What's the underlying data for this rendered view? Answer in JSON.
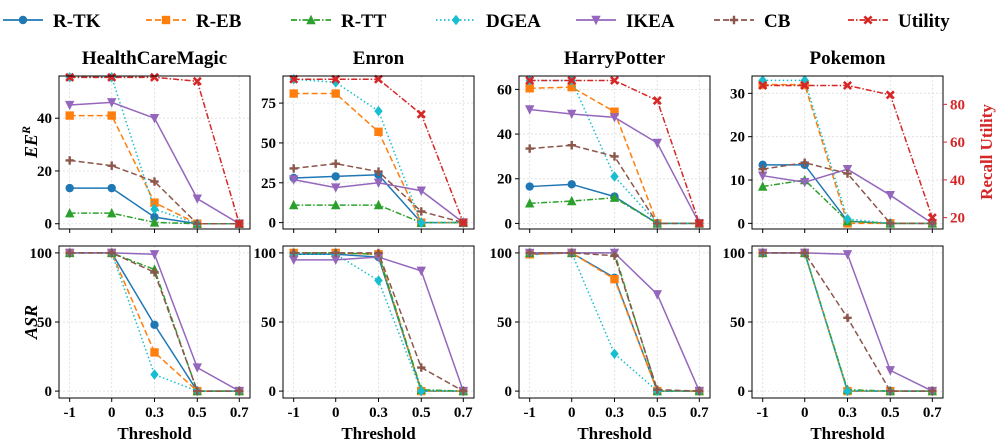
{
  "legend": [
    {
      "name": "R-TK",
      "color": "#1f77b4",
      "marker": "circle",
      "dash": "solid"
    },
    {
      "name": "R-EB",
      "color": "#ff7f0e",
      "marker": "square",
      "dash": "dashed"
    },
    {
      "name": "R-TT",
      "color": "#2ca02c",
      "marker": "triangle-up",
      "dash": "dashdot"
    },
    {
      "name": "DGEA",
      "color": "#17becf",
      "marker": "diamond",
      "dash": "dotted"
    },
    {
      "name": "IKEA",
      "color": "#9467bd",
      "marker": "triangle-down",
      "dash": "solid"
    },
    {
      "name": "CB",
      "color": "#8c564b",
      "marker": "plus",
      "dash": "dashed"
    },
    {
      "name": "Utility",
      "color": "#d62728",
      "marker": "x",
      "dash": "dashdot"
    }
  ],
  "labels": {
    "xlabel": "Threshold",
    "ylabel_top": "EE",
    "ylabel_top_sup": "R",
    "ylabel_bottom": "ASR",
    "ylabel_right": "Recall Utility"
  },
  "chart_data": [
    {
      "type": "line",
      "row": "EE^R",
      "title": "HealthCareMagic",
      "x": [
        "-1",
        "0",
        "0.3",
        "0.5",
        "0.7"
      ],
      "ylim": [
        -2,
        56
      ],
      "yticks": [
        0,
        20,
        40
      ],
      "series": [
        {
          "name": "R-TK",
          "values": [
            13.5,
            13.5,
            2.5,
            0,
            0
          ]
        },
        {
          "name": "R-EB",
          "values": [
            41,
            41,
            8,
            0,
            0
          ]
        },
        {
          "name": "R-TT",
          "values": [
            4,
            4,
            0.5,
            0,
            0
          ]
        },
        {
          "name": "DGEA",
          "values": [
            55.5,
            55.5,
            5.5,
            0,
            0
          ]
        },
        {
          "name": "IKEA",
          "values": [
            45,
            46,
            40,
            9.5,
            0
          ]
        },
        {
          "name": "CB",
          "values": [
            24,
            22,
            16,
            0,
            0
          ]
        },
        {
          "name": "Utility",
          "values": [
            55.5,
            55.5,
            55.5,
            54,
            0
          ]
        }
      ]
    },
    {
      "type": "line",
      "row": "EE^R",
      "title": "Enron",
      "x": [
        "-1",
        "0",
        "0.3",
        "0.5",
        "0.7"
      ],
      "ylim": [
        -4,
        92
      ],
      "yticks": [
        0,
        25,
        50,
        75
      ],
      "series": [
        {
          "name": "R-TK",
          "values": [
            28,
            29,
            30,
            0,
            0
          ]
        },
        {
          "name": "R-EB",
          "values": [
            81,
            81,
            57,
            0,
            0
          ]
        },
        {
          "name": "R-TT",
          "values": [
            11,
            11,
            11,
            0,
            0
          ]
        },
        {
          "name": "DGEA",
          "values": [
            90,
            88,
            70,
            0,
            0
          ]
        },
        {
          "name": "IKEA",
          "values": [
            27,
            22,
            25,
            20,
            0
          ]
        },
        {
          "name": "CB",
          "values": [
            34,
            37,
            32,
            7,
            0
          ]
        },
        {
          "name": "Utility",
          "values": [
            90,
            90,
            90,
            68,
            0
          ]
        }
      ]
    },
    {
      "type": "line",
      "row": "EE^R",
      "title": "HarryPotter",
      "x": [
        "-1",
        "0",
        "0.3",
        "0.5",
        "0.7"
      ],
      "ylim": [
        -2.5,
        66
      ],
      "yticks": [
        0,
        20,
        40,
        60
      ],
      "series": [
        {
          "name": "R-TK",
          "values": [
            16.5,
            17.5,
            12,
            0,
            0
          ]
        },
        {
          "name": "R-EB",
          "values": [
            60.5,
            61,
            50,
            0,
            0
          ]
        },
        {
          "name": "R-TT",
          "values": [
            9,
            10,
            11.5,
            0,
            0
          ]
        },
        {
          "name": "DGEA",
          "values": [
            64,
            64,
            21,
            0,
            0
          ]
        },
        {
          "name": "IKEA",
          "values": [
            51,
            49,
            47.5,
            36,
            0
          ]
        },
        {
          "name": "CB",
          "values": [
            33.5,
            35,
            30,
            0,
            0
          ]
        },
        {
          "name": "Utility",
          "values": [
            64,
            64,
            64,
            55,
            0
          ]
        }
      ]
    },
    {
      "type": "line",
      "row": "EE^R",
      "title": "Pokemon",
      "x": [
        "-1",
        "0",
        "0.3",
        "0.5",
        "0.7"
      ],
      "ylim": [
        -1.3,
        34
      ],
      "yticks": [
        0,
        10,
        20,
        30
      ],
      "y2lim": [
        14,
        95
      ],
      "y2ticks": [
        20,
        40,
        60,
        80
      ],
      "series": [
        {
          "name": "R-TK",
          "values": [
            13.5,
            13.5,
            0.5,
            0,
            0
          ]
        },
        {
          "name": "R-EB",
          "values": [
            32,
            32,
            0,
            0,
            0
          ]
        },
        {
          "name": "R-TT",
          "values": [
            8.5,
            10,
            0.5,
            0,
            0
          ]
        },
        {
          "name": "DGEA",
          "values": [
            33,
            33,
            1,
            0,
            0
          ]
        },
        {
          "name": "IKEA",
          "values": [
            11,
            9.5,
            12.5,
            6.5,
            0
          ]
        },
        {
          "name": "CB",
          "values": [
            12.5,
            14,
            11.5,
            0,
            0
          ]
        },
        {
          "name": "Utility",
          "values": [
            90,
            90,
            90,
            85,
            20
          ],
          "axis": "right"
        }
      ]
    },
    {
      "type": "line",
      "row": "ASR",
      "title": "",
      "x": [
        "-1",
        "0",
        "0.3",
        "0.5",
        "0.7"
      ],
      "ylim": [
        -5,
        105
      ],
      "yticks": [
        0,
        50,
        100
      ],
      "series": [
        {
          "name": "R-TK",
          "values": [
            100,
            100,
            48,
            0,
            0
          ]
        },
        {
          "name": "R-EB",
          "values": [
            100,
            100,
            28,
            0,
            0
          ]
        },
        {
          "name": "R-TT",
          "values": [
            100,
            100,
            88,
            0,
            0
          ]
        },
        {
          "name": "DGEA",
          "values": [
            100,
            100,
            12,
            0,
            0
          ]
        },
        {
          "name": "IKEA",
          "values": [
            100,
            100,
            99,
            17,
            0
          ]
        },
        {
          "name": "CB",
          "values": [
            100,
            100,
            86,
            0,
            0
          ]
        }
      ]
    },
    {
      "type": "line",
      "row": "ASR",
      "title": "",
      "x": [
        "-1",
        "0",
        "0.3",
        "0.5",
        "0.7"
      ],
      "ylim": [
        -5,
        105
      ],
      "yticks": [
        0,
        50,
        100
      ],
      "series": [
        {
          "name": "R-TK",
          "values": [
            99,
            99,
            97,
            0,
            0
          ]
        },
        {
          "name": "R-EB",
          "values": [
            100,
            100,
            99,
            0,
            0
          ]
        },
        {
          "name": "R-TT",
          "values": [
            100,
            100,
            99,
            1,
            0
          ]
        },
        {
          "name": "DGEA",
          "values": [
            99,
            99,
            80,
            0,
            0
          ]
        },
        {
          "name": "IKEA",
          "values": [
            95,
            95,
            97,
            87,
            0
          ]
        },
        {
          "name": "CB",
          "values": [
            100,
            100,
            100,
            17,
            0
          ]
        }
      ]
    },
    {
      "type": "line",
      "row": "ASR",
      "title": "",
      "x": [
        "-1",
        "0",
        "0.3",
        "0.5",
        "0.7"
      ],
      "ylim": [
        -5,
        105
      ],
      "yticks": [
        0,
        50,
        100
      ],
      "series": [
        {
          "name": "R-TK",
          "values": [
            99,
            100,
            82,
            0,
            0
          ]
        },
        {
          "name": "R-EB",
          "values": [
            99,
            100,
            81,
            0,
            0
          ]
        },
        {
          "name": "R-TT",
          "values": [
            100,
            100,
            100,
            0,
            0
          ]
        },
        {
          "name": "DGEA",
          "values": [
            100,
            100,
            27,
            0,
            0
          ]
        },
        {
          "name": "IKEA",
          "values": [
            100,
            100,
            100,
            70,
            0
          ]
        },
        {
          "name": "CB",
          "values": [
            100,
            100,
            98,
            1,
            0
          ]
        }
      ]
    },
    {
      "type": "line",
      "row": "ASR",
      "title": "",
      "x": [
        "-1",
        "0",
        "0.3",
        "0.5",
        "0.7"
      ],
      "ylim": [
        -5,
        105
      ],
      "yticks": [
        0,
        50,
        100
      ],
      "series": [
        {
          "name": "R-TK",
          "values": [
            100,
            100,
            0,
            0,
            0
          ]
        },
        {
          "name": "R-EB",
          "values": [
            100,
            100,
            0,
            0,
            0
          ]
        },
        {
          "name": "R-TT",
          "values": [
            100,
            100,
            1,
            0,
            0
          ]
        },
        {
          "name": "DGEA",
          "values": [
            100,
            100,
            0,
            0,
            0
          ]
        },
        {
          "name": "IKEA",
          "values": [
            100,
            100,
            99,
            15,
            0
          ]
        },
        {
          "name": "CB",
          "values": [
            100,
            100,
            53,
            0,
            0
          ]
        }
      ]
    }
  ]
}
